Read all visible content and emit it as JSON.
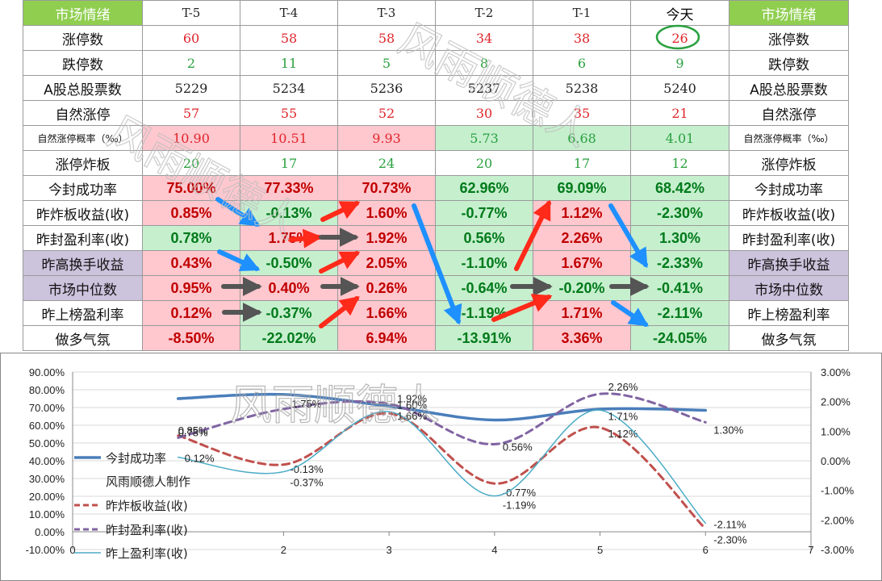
{
  "sheet": {
    "corner_label": "市场情绪",
    "columns": [
      "T-5",
      "T-4",
      "T-3",
      "T-2",
      "T-1",
      "今天"
    ],
    "right_header": "市场情绪",
    "rows": [
      {
        "label": "涨停数",
        "values": [
          "60",
          "58",
          "58",
          "34",
          "38",
          "26"
        ],
        "kind": "num",
        "colors": [
          "red",
          "red",
          "red",
          "red",
          "red",
          "red"
        ],
        "bgs": [
          "",
          "",
          "",
          "",
          "",
          ""
        ],
        "purple": false
      },
      {
        "label": "跌停数",
        "values": [
          "2",
          "11",
          "5",
          "8",
          "6",
          "9"
        ],
        "kind": "num",
        "colors": [
          "green",
          "green",
          "green",
          "green",
          "green",
          "green"
        ],
        "bgs": [
          "",
          "",
          "",
          "",
          "",
          ""
        ],
        "purple": false
      },
      {
        "label": "A股总股票数",
        "values": [
          "5229",
          "5234",
          "5236",
          "5237",
          "5238",
          "5240"
        ],
        "kind": "num",
        "colors": [
          "dark",
          "dark",
          "dark",
          "dark",
          "dark",
          "dark"
        ],
        "bgs": [
          "",
          "",
          "",
          "",
          "",
          ""
        ],
        "purple": false
      },
      {
        "label": "自然涨停",
        "values": [
          "57",
          "55",
          "52",
          "30",
          "35",
          "21"
        ],
        "kind": "num",
        "colors": [
          "red",
          "red",
          "red",
          "red",
          "red",
          "red"
        ],
        "bgs": [
          "",
          "",
          "",
          "",
          "",
          ""
        ],
        "purple": false
      },
      {
        "label": "自然涨停概率（‰）",
        "values": [
          "10.90",
          "10.51",
          "9.93",
          "5.73",
          "6.68",
          "4.01"
        ],
        "kind": "num",
        "colors": [
          "red",
          "red",
          "red",
          "green",
          "green",
          "green"
        ],
        "bgs": [
          "pink",
          "pink",
          "pink",
          "green",
          "green",
          "green"
        ],
        "purple": false,
        "small": true
      },
      {
        "label": "涨停炸板",
        "values": [
          "20",
          "17",
          "24",
          "20",
          "17",
          "12"
        ],
        "kind": "num",
        "colors": [
          "green",
          "green",
          "green",
          "green",
          "green",
          "green"
        ],
        "bgs": [
          "",
          "",
          "",
          "",
          "",
          ""
        ],
        "purple": false
      },
      {
        "label": "今封成功率",
        "values": [
          "75.00%",
          "77.33%",
          "70.73%",
          "62.96%",
          "69.09%",
          "68.42%"
        ],
        "kind": "pct",
        "colors": [
          "dk-red",
          "dk-red",
          "dk-red",
          "dk-green",
          "dk-green",
          "dk-green"
        ],
        "bgs": [
          "pink",
          "pink",
          "pink",
          "green",
          "green",
          "green"
        ],
        "purple": false
      },
      {
        "label": "昨炸板收益(收)",
        "values": [
          "0.85%",
          "-0.13%",
          "1.60%",
          "-0.77%",
          "1.12%",
          "-2.30%"
        ],
        "kind": "pct",
        "colors": [
          "dk-red",
          "dk-green",
          "dk-red",
          "dk-green",
          "dk-red",
          "dk-green"
        ],
        "bgs": [
          "pink",
          "green",
          "pink",
          "green",
          "pink",
          "green"
        ],
        "purple": false
      },
      {
        "label": "昨封盈利率(收)",
        "values": [
          "0.78%",
          "1.75%",
          "1.92%",
          "0.56%",
          "2.26%",
          "1.30%"
        ],
        "kind": "pct",
        "colors": [
          "dk-green",
          "dk-red",
          "dk-red",
          "dk-green",
          "dk-red",
          "dk-green"
        ],
        "bgs": [
          "green",
          "pink",
          "pink",
          "green",
          "pink",
          "green"
        ],
        "purple": false
      },
      {
        "label": "昨高换手收益",
        "values": [
          "0.43%",
          "-0.50%",
          "2.05%",
          "-1.10%",
          "1.67%",
          "-2.33%"
        ],
        "kind": "pct",
        "colors": [
          "dk-red",
          "dk-green",
          "dk-red",
          "dk-green",
          "dk-red",
          "dk-green"
        ],
        "bgs": [
          "pink",
          "green",
          "pink",
          "green",
          "pink",
          "green"
        ],
        "purple": true
      },
      {
        "label": "市场中位数",
        "values": [
          "0.95%",
          "0.40%",
          "0.26%",
          "-0.64%",
          "-0.20%",
          "-0.41%"
        ],
        "kind": "pct",
        "colors": [
          "dk-red",
          "dk-red",
          "dk-red",
          "dk-green",
          "dk-green",
          "dk-green"
        ],
        "bgs": [
          "pink",
          "pink",
          "pink",
          "green",
          "green",
          "green"
        ],
        "purple": true
      },
      {
        "label": "昨上榜盈利率",
        "values": [
          "0.12%",
          "-0.37%",
          "1.66%",
          "-1.19%",
          "1.71%",
          "-2.11%"
        ],
        "kind": "pct",
        "colors": [
          "dk-red",
          "dk-green",
          "dk-red",
          "dk-green",
          "dk-red",
          "dk-green"
        ],
        "bgs": [
          "pink",
          "green",
          "pink",
          "green",
          "pink",
          "green"
        ],
        "purple": false
      },
      {
        "label": "做多气氛",
        "values": [
          "-8.50%",
          "-22.02%",
          "6.94%",
          "-13.91%",
          "3.36%",
          "-24.05%"
        ],
        "kind": "pct",
        "colors": [
          "dk-red",
          "dk-green",
          "dk-red",
          "dk-green",
          "dk-red",
          "dk-green"
        ],
        "bgs": [
          "pink",
          "green",
          "pink",
          "green",
          "pink",
          "green"
        ],
        "purple": false
      }
    ],
    "watermark": "风雨顺德人",
    "colors": {
      "header_green": "#8fce4f",
      "pink": "#ffc7ce",
      "light_green": "#c6efce",
      "purple": "#ccc3dd",
      "red_arrow": "#ff2a1a",
      "blue_arrow": "#1e90ff",
      "gray_arrow": "#555555",
      "circle": "#2aa140"
    }
  },
  "chart_data": {
    "type": "line",
    "x": [
      1,
      2,
      3,
      4,
      5,
      6
    ],
    "xlim": [
      0,
      7
    ],
    "xticks": [
      "0",
      "2",
      "3",
      "4",
      "5",
      "6",
      "7"
    ],
    "ylim_left": [
      -10,
      90
    ],
    "yticks_left": [
      "90.00%",
      "80.00%",
      "70.00%",
      "60.00%",
      "50.00%",
      "40.00%",
      "30.00%",
      "20.00%",
      "10.00%",
      "0.00%",
      "-10.00%"
    ],
    "ylim_right": [
      -3,
      3
    ],
    "yticks_right": [
      "3.00%",
      "2.00%",
      "1.00%",
      "0.00%",
      "-1.00%",
      "-2.00%",
      "-3.00%"
    ],
    "grid": true,
    "legend_extra": "风雨顺德人制作",
    "series": [
      {
        "name": "今封成功率",
        "axis": "left",
        "values": [
          75.0,
          77.33,
          70.73,
          62.96,
          69.09,
          68.42
        ],
        "color": "#4a7ebb",
        "style": "solid",
        "width": 3.5,
        "labels": []
      },
      {
        "name": "昨炸板收益(收)",
        "axis": "right",
        "values": [
          0.85,
          -0.13,
          1.6,
          -0.77,
          1.12,
          -2.3
        ],
        "color": "#c0504d",
        "style": "dash",
        "width": 3,
        "labels": [
          "0.85%",
          "-0.13%",
          "1.60%",
          "-0.77%",
          "1.12%",
          "-2.30%"
        ]
      },
      {
        "name": "昨封盈利率(收)",
        "axis": "right",
        "values": [
          0.78,
          1.75,
          1.92,
          0.56,
          2.26,
          1.3
        ],
        "color": "#8064a2",
        "style": "dash",
        "width": 3,
        "labels": [
          "0.78%",
          "1.75%",
          "1.92%",
          "0.56%",
          "2.26%",
          "1.30%"
        ]
      },
      {
        "name": "昨上盈利率(收)",
        "axis": "right",
        "values": [
          0.12,
          -0.37,
          1.66,
          -1.19,
          1.71,
          -2.11
        ],
        "color": "#4bacc6",
        "style": "solid",
        "width": 1.5,
        "labels": [
          "0.12%",
          "-0.37%",
          "1.66%",
          "-1.19%",
          "1.71%",
          "-2.11%"
        ]
      }
    ],
    "watermark": "风雨顺德人"
  }
}
